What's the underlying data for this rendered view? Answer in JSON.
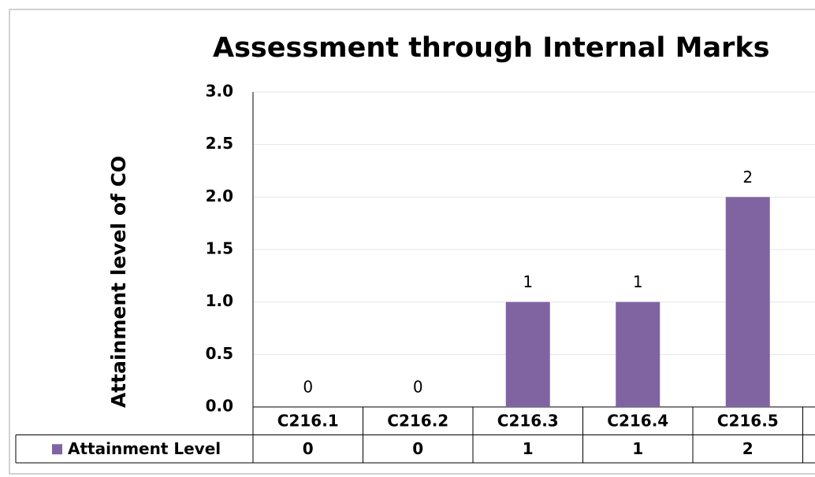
{
  "chart_data": {
    "type": "bar",
    "title": "Assessment through Internal Marks",
    "y_label": "Attainment level of CO",
    "categories": [
      "C216.1",
      "C216.2",
      "C216.3",
      "C216.4",
      "C216.5"
    ],
    "series": [
      {
        "name": "Attainment Level",
        "color": "#8064a2",
        "values": [
          0,
          0,
          1,
          1,
          2
        ]
      }
    ],
    "ylim": [
      0,
      3
    ],
    "yticks": [
      {
        "value": 0,
        "label": "0.0"
      },
      {
        "value": 0.5,
        "label": "0.5"
      },
      {
        "value": 1,
        "label": "1.0"
      },
      {
        "value": 1.5,
        "label": "1.5"
      },
      {
        "value": 2,
        "label": "2.0"
      },
      {
        "value": 2.5,
        "label": "2.5"
      },
      {
        "value": 3,
        "label": "3.0"
      }
    ],
    "grid": true,
    "data_table": true
  }
}
